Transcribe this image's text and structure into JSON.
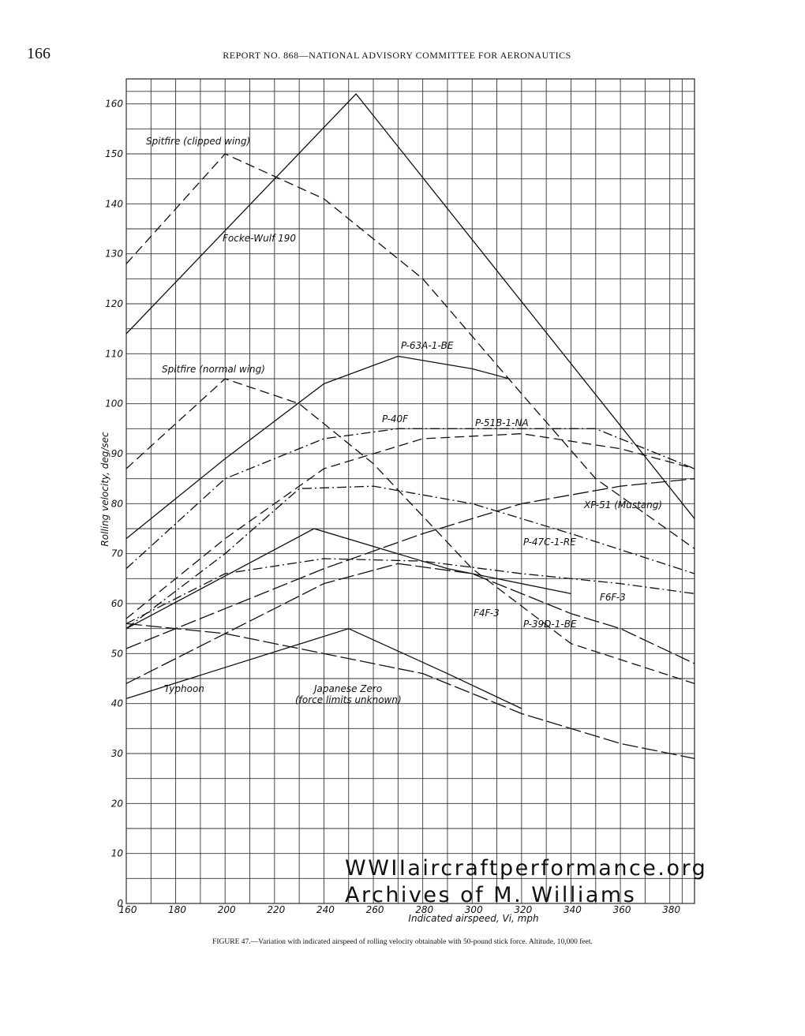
{
  "page_number": "166",
  "header": "REPORT NO. 868—NATIONAL ADVISORY COMMITTEE FOR AERONAUTICS",
  "caption": "FIGURE 47.—Variation with indicated airspeed of rolling velocity obtainable with 50-pound stick force. Altitude, 10,000 feet.",
  "watermark": [
    "WWIIaircraftperformance.org",
    "Archives of M. Williams"
  ],
  "chart_data": {
    "type": "line",
    "x_label": "Indicated airspeed, Vi, mph",
    "y_label": "Rolling velocity, deg/sec",
    "xlim": [
      160,
      390
    ],
    "ylim": [
      0,
      165
    ],
    "xticks": [
      160,
      180,
      200,
      220,
      240,
      260,
      280,
      300,
      320,
      340,
      360,
      380
    ],
    "yticks": [
      0,
      10,
      20,
      30,
      40,
      50,
      60,
      70,
      80,
      90,
      100,
      110,
      120,
      130,
      140,
      150,
      160
    ],
    "grid": true,
    "annotations": [
      "(force limits unknown)"
    ],
    "series": [
      {
        "name": "Spitfire (clipped wing)",
        "color": "#111",
        "dash": "dashed",
        "x": [
          160,
          200,
          240,
          280,
          320,
          350,
          390
        ],
        "values": [
          128,
          150,
          141,
          125,
          102,
          85,
          71
        ]
      },
      {
        "name": "Focke-Wulf 190",
        "color": "#111",
        "dash": "solid",
        "x": [
          160,
          253,
          390
        ],
        "values": [
          114,
          162,
          77
        ]
      },
      {
        "name": "P-63A-1-BE",
        "color": "#111",
        "dash": "solid",
        "x": [
          160,
          200,
          240,
          270,
          300,
          315
        ],
        "values": [
          73,
          89,
          104,
          109.5,
          107,
          105
        ]
      },
      {
        "name": "Spitfire (normal wing)",
        "color": "#111",
        "dash": "dashed",
        "x": [
          160,
          200,
          230,
          260,
          300,
          340,
          390
        ],
        "values": [
          87,
          105,
          100,
          88,
          67,
          52,
          44
        ]
      },
      {
        "name": "P-40F",
        "color": "#111",
        "dash": "dashdot",
        "x": [
          160,
          200,
          240,
          270,
          300,
          350,
          390
        ],
        "values": [
          67,
          85,
          93,
          95,
          95,
          95,
          87
        ]
      },
      {
        "name": "P-51B-1-NA",
        "color": "#111",
        "dash": "dashed",
        "x": [
          160,
          200,
          240,
          280,
          320,
          360,
          390
        ],
        "values": [
          57,
          73,
          87,
          93,
          94,
          91,
          87
        ]
      },
      {
        "name": "XP-51 (Mustang)",
        "color": "#111",
        "dash": "longdash",
        "x": [
          160,
          200,
          240,
          280,
          320,
          360,
          390
        ],
        "values": [
          51,
          59,
          67,
          74,
          80,
          83.5,
          85
        ]
      },
      {
        "name": "P-47C-1-RE",
        "color": "#111",
        "dash": "dashdot",
        "x": [
          160,
          200,
          230,
          260,
          300,
          340,
          390
        ],
        "values": [
          55,
          70,
          83,
          83.5,
          80,
          74,
          66
        ]
      },
      {
        "name": "F6F-3",
        "color": "#111",
        "dash": "dashdot",
        "x": [
          160,
          200,
          240,
          280,
          320,
          360,
          390
        ],
        "values": [
          56,
          66,
          69,
          68.5,
          66,
          64,
          62
        ]
      },
      {
        "name": "F4F-3",
        "color": "#111",
        "dash": "solid",
        "x": [
          160,
          236,
          290,
          340
        ],
        "values": [
          55,
          75,
          67,
          62
        ]
      },
      {
        "name": "P-39D-1-BE",
        "color": "#111",
        "dash": "longdash",
        "x": [
          160,
          200,
          240,
          270,
          300,
          340,
          360,
          390
        ],
        "values": [
          44,
          54,
          64,
          68,
          66,
          58,
          55,
          48
        ]
      },
      {
        "name": "Typhoon",
        "color": "#111",
        "dash": "longdash",
        "x": [
          160,
          200,
          240,
          280,
          320,
          360,
          390
        ],
        "values": [
          56,
          54,
          50,
          46,
          38,
          32,
          29
        ]
      },
      {
        "name": "Japanese Zero",
        "color": "#111",
        "dash": "solid",
        "x": [
          160,
          250,
          290,
          320
        ],
        "values": [
          41,
          55,
          46,
          39
        ]
      }
    ]
  }
}
